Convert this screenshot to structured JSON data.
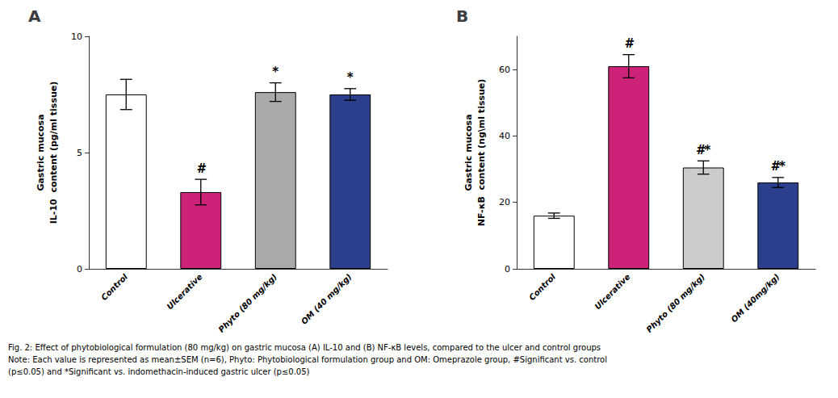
{
  "caption": [
    "Fig. 2: Effect of phytobiological formulation (80 mg/kg) on gastric mucosa (A) IL-10 and (B) NF-κB levels, compared to the ulcer and control groups",
    "Note: Each value is represented as mean±SEM (n=6), Phyto: Phytobiological formulation group and OM: Omeprazole group, #Significant vs. control",
    "(p≤0.05) and *Significant vs. indomethacin-induced gastric ulcer (p≤0.05)"
  ],
  "chart_data": [
    {
      "type": "bar",
      "title": "A",
      "categories": [
        "Control",
        "Ulcerative",
        "Phyto (80 mg/kg)",
        "OM (40 mg/kg)"
      ],
      "values": [
        7.5,
        3.3,
        7.6,
        7.5
      ],
      "errors": [
        0.65,
        0.55,
        0.4,
        0.25
      ],
      "colors": [
        "#ffffff",
        "#cc2277",
        "#aaaaaa",
        "#2b3f8c"
      ],
      "ylabel": "Gastric mucosa\nIL-10  content (pg/ml tissue)",
      "ylim": [
        0,
        10
      ],
      "yticks": [
        0,
        5,
        10
      ],
      "annotations": [
        null,
        "#",
        "*",
        "*"
      ],
      "grid": false
    },
    {
      "type": "bar",
      "title": "B",
      "categories": [
        "Control",
        "Ulcerative",
        "Phyto (80 mg/kg)",
        "OM (40mg/kg)"
      ],
      "values": [
        16.0,
        61.0,
        30.5,
        26.0
      ],
      "errors": [
        0.8,
        3.5,
        2.0,
        1.5
      ],
      "colors": [
        "#ffffff",
        "#cc2277",
        "#cccccc",
        "#2b3f8c"
      ],
      "ylabel": "Gastric mucosa\nNF-κB  content (ng\\ml tissue)",
      "ylim": [
        0,
        70
      ],
      "yticks": [
        0,
        20,
        40,
        60
      ],
      "annotations": [
        null,
        "#",
        "#*",
        "#*"
      ],
      "grid": false
    }
  ]
}
